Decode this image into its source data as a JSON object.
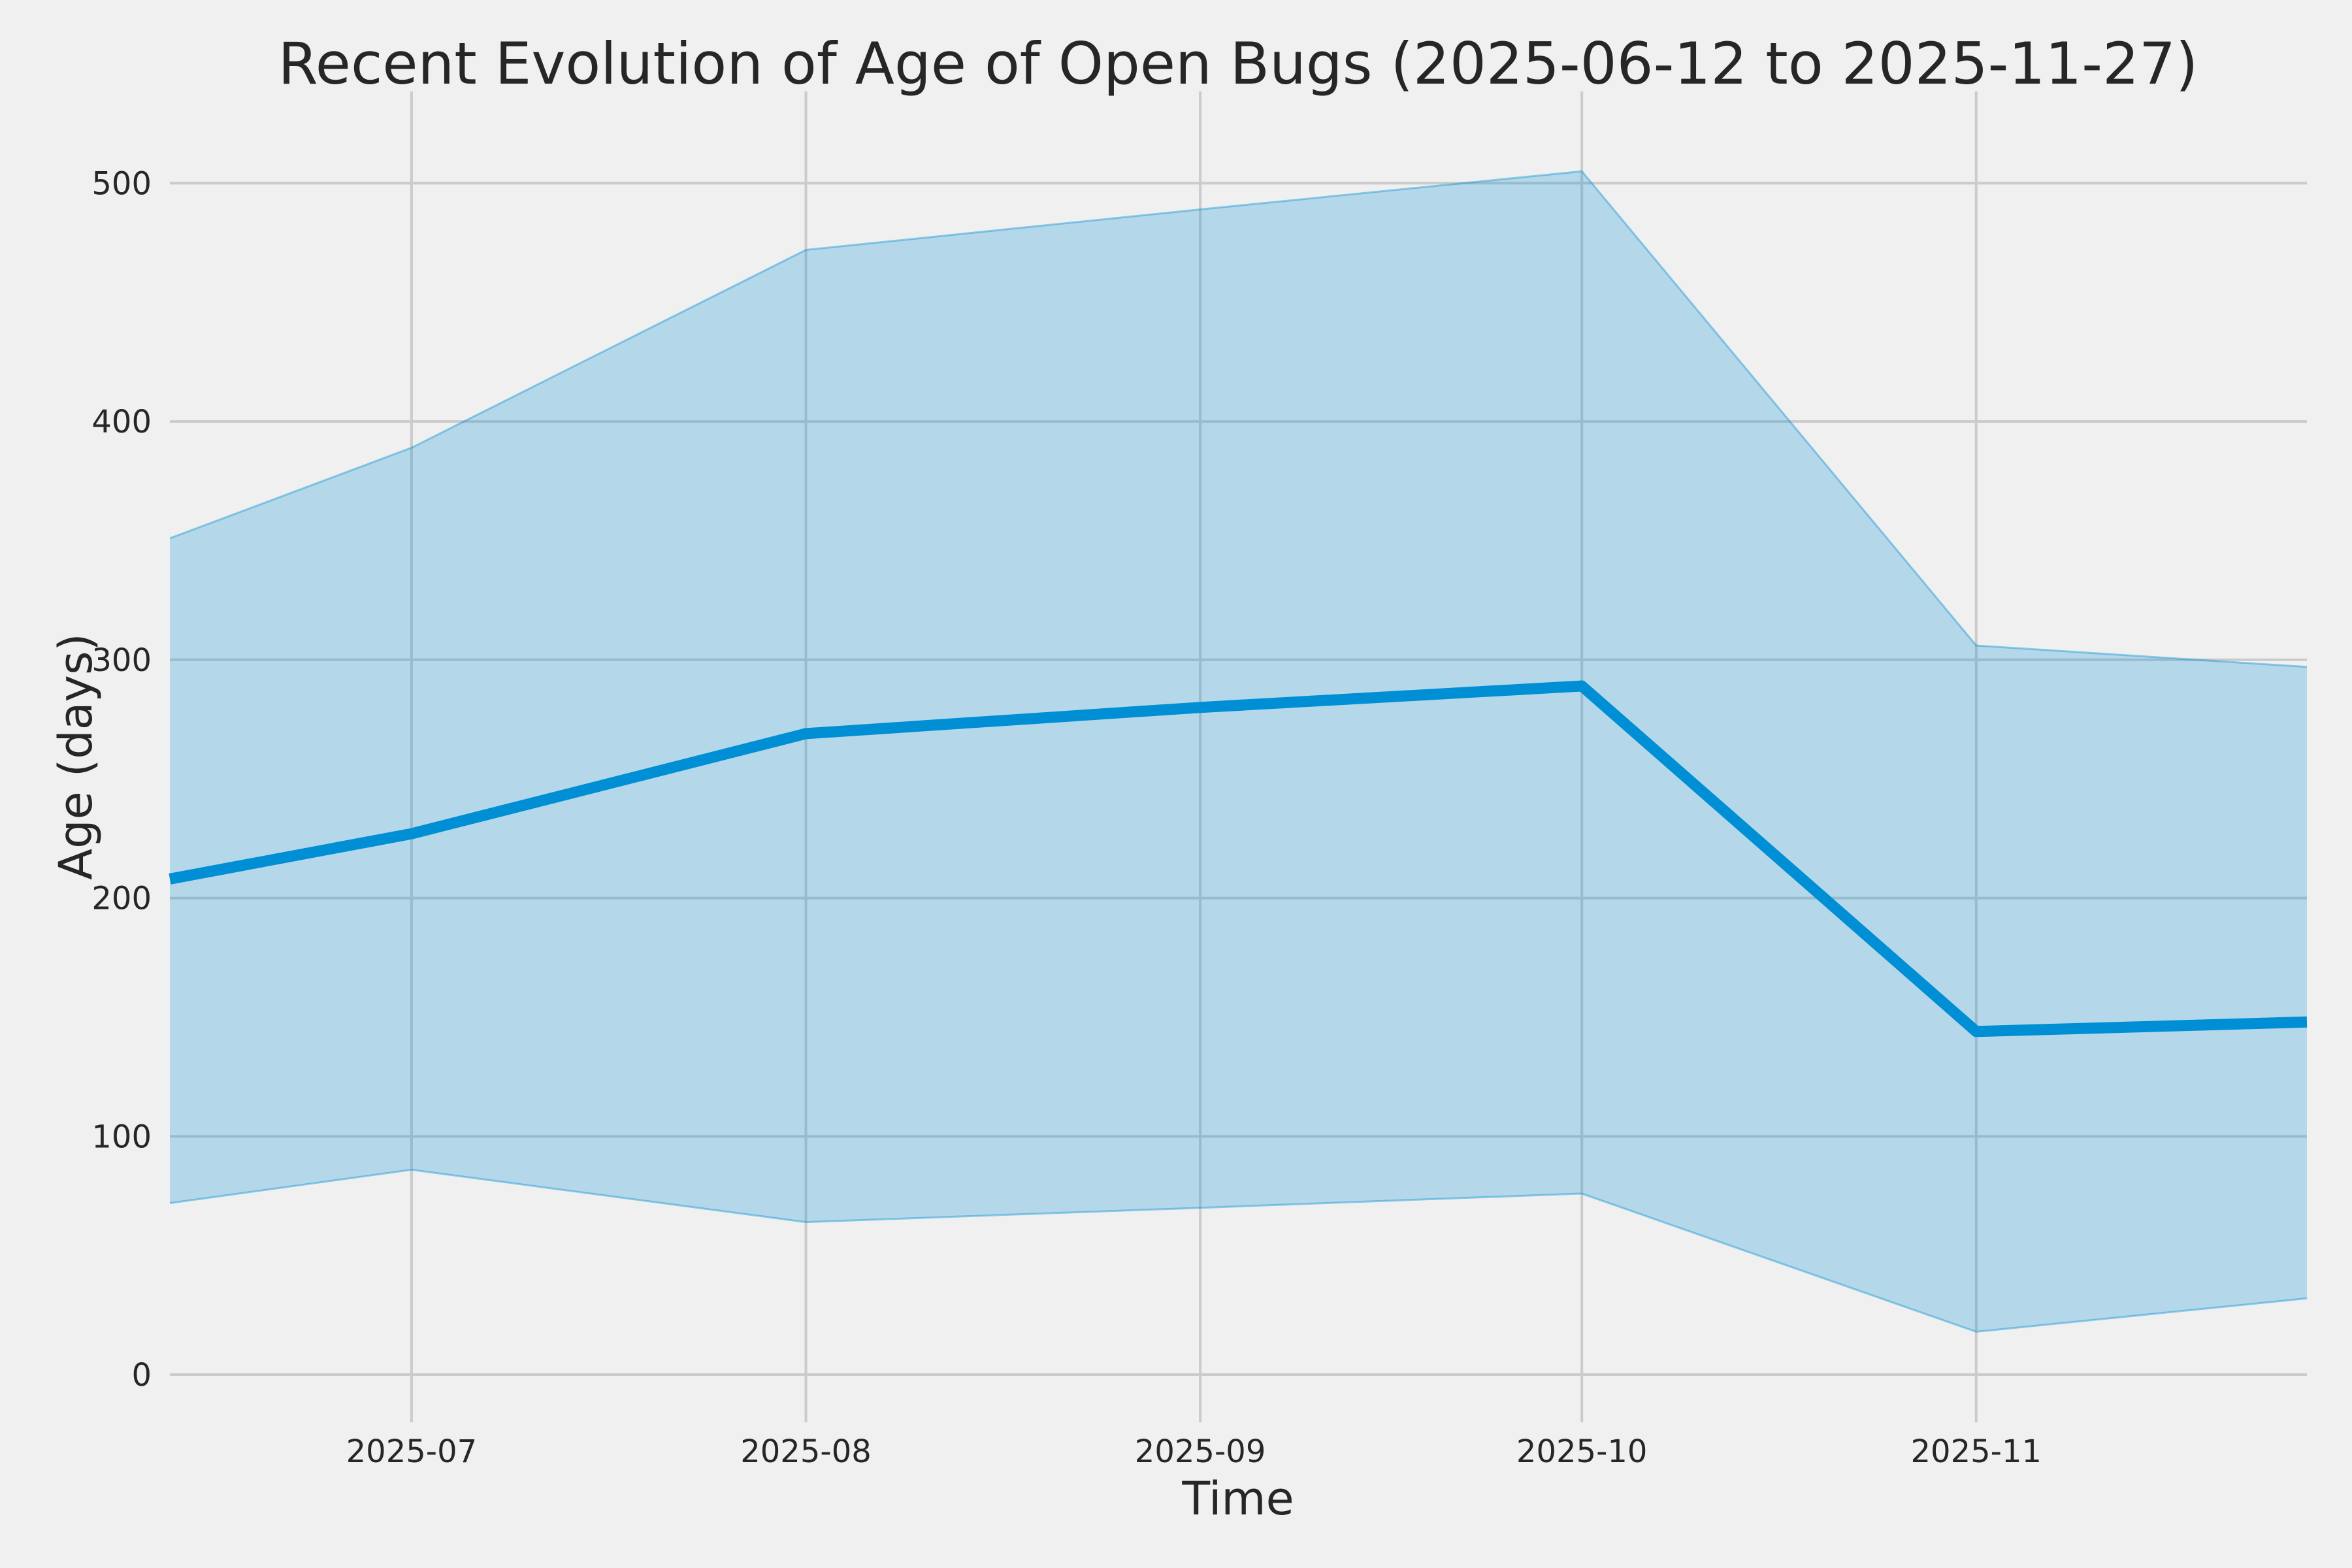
{
  "chart_data": {
    "type": "line",
    "title": "Recent Evolution of Age of Open Bugs (2025-06-12 to 2025-11-27)",
    "xlabel": "Time",
    "ylabel": "Age (days)",
    "x_dates": [
      "2025-06-12",
      "2025-07-01",
      "2025-08-01",
      "2025-09-01",
      "2025-10-01",
      "2025-11-01",
      "2025-11-27"
    ],
    "x_days": [
      0,
      19,
      50,
      81,
      111,
      142,
      168
    ],
    "series": [
      {
        "name": "median_age",
        "values": [
          208,
          227,
          269,
          280,
          289,
          144,
          148
        ]
      },
      {
        "name": "band_upper",
        "values": [
          351,
          389,
          472,
          489,
          505,
          306,
          297
        ]
      },
      {
        "name": "band_lower",
        "values": [
          72,
          86,
          64,
          70,
          76,
          18,
          32
        ]
      }
    ],
    "x_ticks": [
      {
        "day": 19,
        "label": "2025-07"
      },
      {
        "day": 50,
        "label": "2025-08"
      },
      {
        "day": 81,
        "label": "2025-09"
      },
      {
        "day": 111,
        "label": "2025-10"
      },
      {
        "day": 142,
        "label": "2025-11"
      }
    ],
    "y_ticks": [
      0,
      100,
      200,
      300,
      400,
      500
    ],
    "xlim_days": [
      0,
      168
    ],
    "ylim": [
      -20,
      538.5
    ],
    "grid": true,
    "legend": false,
    "colors": {
      "line": "#008fd5",
      "band_fill": "rgba(0,143,213,0.25)",
      "band_edge": "rgba(0,143,213,0.4)",
      "background": "#f0f0f0",
      "gridline": "#cbcbcb",
      "text": "#262626"
    }
  }
}
